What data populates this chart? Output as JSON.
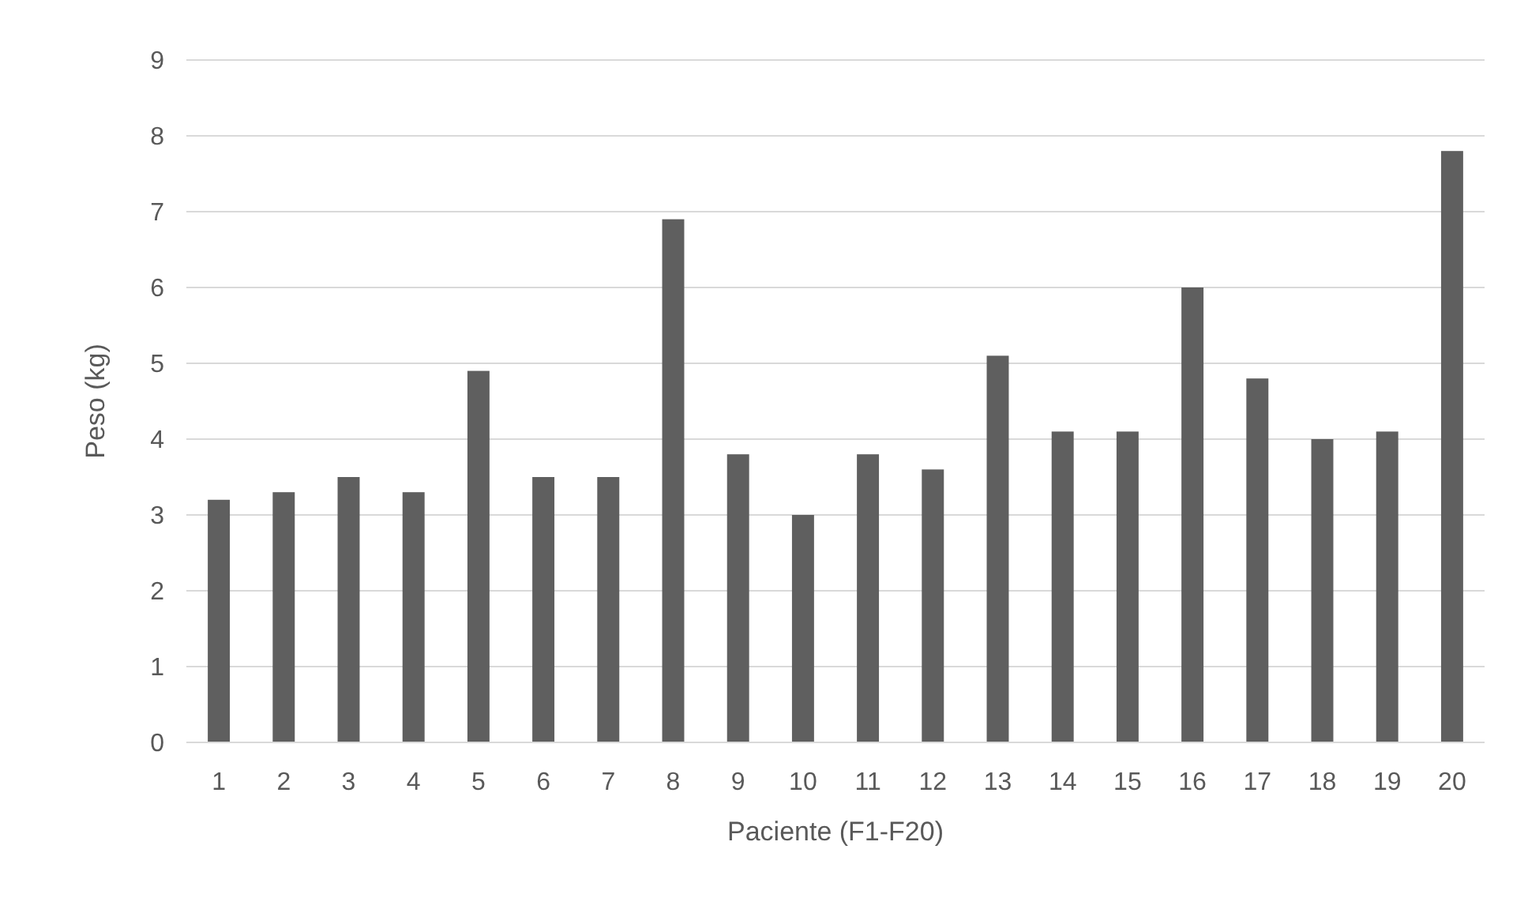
{
  "chart_data": {
    "type": "bar",
    "xlabel": "Paciente (F1-F20)",
    "ylabel": "Peso (kg)",
    "categories": [
      "1",
      "2",
      "3",
      "4",
      "5",
      "6",
      "7",
      "8",
      "9",
      "10",
      "11",
      "12",
      "13",
      "14",
      "15",
      "16",
      "17",
      "18",
      "19",
      "20"
    ],
    "values": [
      3.2,
      3.3,
      3.5,
      3.3,
      4.9,
      3.5,
      3.5,
      6.9,
      3.8,
      3.0,
      3.8,
      3.6,
      5.1,
      4.1,
      4.1,
      6.0,
      4.8,
      4.0,
      4.1,
      7.8
    ],
    "color": "#5f5f5f",
    "ylim": [
      0,
      9
    ],
    "yticks": [
      0,
      1,
      2,
      3,
      4,
      5,
      6,
      7,
      8,
      9
    ],
    "grid": "y"
  }
}
